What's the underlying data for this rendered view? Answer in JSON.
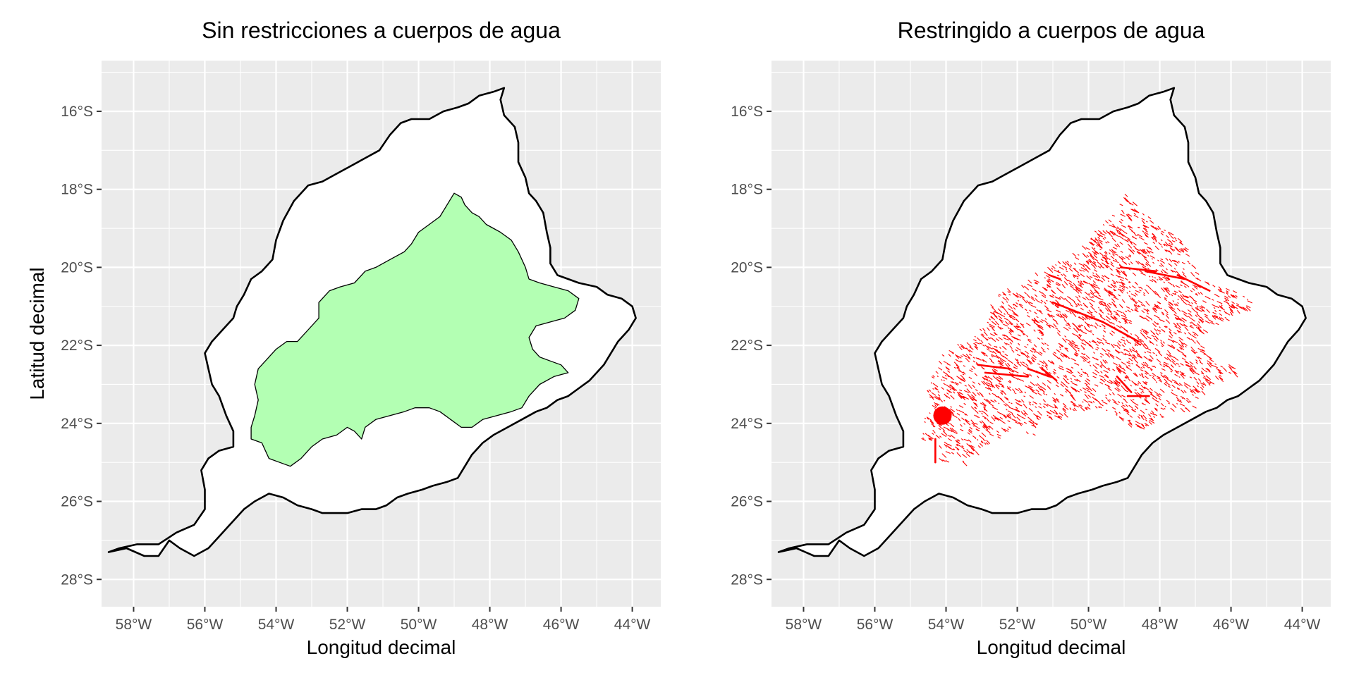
{
  "colors": {
    "panel_background": "#ebebeb",
    "grid_line": "#ffffff",
    "basin_fill": "#ffffff",
    "basin_outline": "#000000",
    "range_fill": "#b3ffb3",
    "water_points": "#ff0000",
    "occurrence_point": "#ff0000",
    "tick_text": "#4d4d4d",
    "title_text": "#000000"
  },
  "axes": {
    "x_label": "Longitud decimal",
    "y_label": "Latitud decimal",
    "x_ticks": [
      {
        "value": -58,
        "label": "58°W"
      },
      {
        "value": -56,
        "label": "56°W"
      },
      {
        "value": -54,
        "label": "54°W"
      },
      {
        "value": -52,
        "label": "52°W"
      },
      {
        "value": -50,
        "label": "50°W"
      },
      {
        "value": -48,
        "label": "48°W"
      },
      {
        "value": -46,
        "label": "46°W"
      },
      {
        "value": -44,
        "label": "44°W"
      }
    ],
    "y_ticks": [
      {
        "value": -16,
        "label": "16°S"
      },
      {
        "value": -18,
        "label": "18°S"
      },
      {
        "value": -20,
        "label": "20°S"
      },
      {
        "value": -22,
        "label": "22°S"
      },
      {
        "value": -24,
        "label": "24°S"
      },
      {
        "value": -26,
        "label": "26°S"
      },
      {
        "value": -28,
        "label": "28°S"
      }
    ]
  },
  "map_data": {
    "basin_outline": [
      [
        -58.7,
        -27.3
      ],
      [
        -58.2,
        -27.2
      ],
      [
        -57.7,
        -27.4
      ],
      [
        -57.3,
        -27.4
      ],
      [
        -57.0,
        -27.0
      ],
      [
        -56.7,
        -27.2
      ],
      [
        -56.3,
        -27.4
      ],
      [
        -55.9,
        -27.2
      ],
      [
        -55.6,
        -26.9
      ],
      [
        -55.3,
        -26.6
      ],
      [
        -54.9,
        -26.2
      ],
      [
        -54.6,
        -26.0
      ],
      [
        -54.2,
        -25.8
      ],
      [
        -53.8,
        -25.9
      ],
      [
        -53.4,
        -26.1
      ],
      [
        -53.0,
        -26.2
      ],
      [
        -52.7,
        -26.3
      ],
      [
        -52.4,
        -26.3
      ],
      [
        -52.0,
        -26.3
      ],
      [
        -51.6,
        -26.2
      ],
      [
        -51.2,
        -26.2
      ],
      [
        -50.9,
        -26.1
      ],
      [
        -50.6,
        -25.9
      ],
      [
        -50.3,
        -25.8
      ],
      [
        -49.9,
        -25.7
      ],
      [
        -49.6,
        -25.6
      ],
      [
        -49.2,
        -25.5
      ],
      [
        -48.9,
        -25.4
      ],
      [
        -48.7,
        -25.1
      ],
      [
        -48.5,
        -24.8
      ],
      [
        -48.2,
        -24.5
      ],
      [
        -47.9,
        -24.3
      ],
      [
        -47.5,
        -24.1
      ],
      [
        -47.1,
        -23.9
      ],
      [
        -46.7,
        -23.7
      ],
      [
        -46.4,
        -23.6
      ],
      [
        -46.1,
        -23.4
      ],
      [
        -45.8,
        -23.3
      ],
      [
        -45.5,
        -23.1
      ],
      [
        -45.2,
        -22.9
      ],
      [
        -45.0,
        -22.7
      ],
      [
        -44.8,
        -22.5
      ],
      [
        -44.6,
        -22.2
      ],
      [
        -44.4,
        -21.9
      ],
      [
        -44.1,
        -21.6
      ],
      [
        -43.9,
        -21.3
      ],
      [
        -44.0,
        -21.0
      ],
      [
        -44.3,
        -20.8
      ],
      [
        -44.7,
        -20.7
      ],
      [
        -45.0,
        -20.5
      ],
      [
        -45.5,
        -20.4
      ],
      [
        -45.8,
        -20.3
      ],
      [
        -46.1,
        -20.2
      ],
      [
        -46.3,
        -19.9
      ],
      [
        -46.3,
        -19.5
      ],
      [
        -46.4,
        -19.1
      ],
      [
        -46.5,
        -18.6
      ],
      [
        -46.7,
        -18.3
      ],
      [
        -46.9,
        -18.1
      ],
      [
        -47.0,
        -17.7
      ],
      [
        -47.2,
        -17.3
      ],
      [
        -47.2,
        -16.8
      ],
      [
        -47.3,
        -16.4
      ],
      [
        -47.6,
        -16.1
      ],
      [
        -47.7,
        -15.7
      ],
      [
        -47.6,
        -15.4
      ],
      [
        -47.9,
        -15.5
      ],
      [
        -48.3,
        -15.6
      ],
      [
        -48.6,
        -15.8
      ],
      [
        -48.9,
        -15.9
      ],
      [
        -49.3,
        -16.0
      ],
      [
        -49.7,
        -16.2
      ],
      [
        -50.2,
        -16.2
      ],
      [
        -50.5,
        -16.3
      ],
      [
        -50.8,
        -16.6
      ],
      [
        -51.1,
        -17.0
      ],
      [
        -51.5,
        -17.2
      ],
      [
        -51.9,
        -17.4
      ],
      [
        -52.3,
        -17.6
      ],
      [
        -52.7,
        -17.8
      ],
      [
        -53.1,
        -17.9
      ],
      [
        -53.5,
        -18.3
      ],
      [
        -53.8,
        -18.8
      ],
      [
        -54.0,
        -19.3
      ],
      [
        -54.1,
        -19.8
      ],
      [
        -54.4,
        -20.1
      ],
      [
        -54.7,
        -20.3
      ],
      [
        -54.9,
        -20.7
      ],
      [
        -55.1,
        -21.0
      ],
      [
        -55.2,
        -21.3
      ],
      [
        -55.5,
        -21.6
      ],
      [
        -55.8,
        -21.9
      ],
      [
        -56.0,
        -22.2
      ],
      [
        -55.9,
        -22.6
      ],
      [
        -55.8,
        -23.0
      ],
      [
        -55.6,
        -23.3
      ],
      [
        -55.4,
        -23.8
      ],
      [
        -55.2,
        -24.2
      ],
      [
        -55.2,
        -24.6
      ],
      [
        -55.6,
        -24.7
      ],
      [
        -55.9,
        -24.9
      ],
      [
        -56.1,
        -25.2
      ],
      [
        -56.0,
        -25.7
      ],
      [
        -56.0,
        -26.2
      ],
      [
        -56.3,
        -26.6
      ],
      [
        -56.8,
        -26.8
      ],
      [
        -57.3,
        -27.1
      ],
      [
        -57.9,
        -27.1
      ],
      [
        -58.4,
        -27.2
      ]
    ],
    "range_polygon": [
      [
        -54.7,
        -24.4
      ],
      [
        -54.4,
        -24.5
      ],
      [
        -54.2,
        -24.9
      ],
      [
        -53.9,
        -25.0
      ],
      [
        -53.6,
        -25.1
      ],
      [
        -53.3,
        -24.9
      ],
      [
        -53.0,
        -24.6
      ],
      [
        -52.7,
        -24.4
      ],
      [
        -52.3,
        -24.3
      ],
      [
        -52.0,
        -24.1
      ],
      [
        -51.8,
        -24.2
      ],
      [
        -51.6,
        -24.4
      ],
      [
        -51.5,
        -24.1
      ],
      [
        -51.2,
        -23.9
      ],
      [
        -50.8,
        -23.8
      ],
      [
        -50.4,
        -23.7
      ],
      [
        -50.1,
        -23.6
      ],
      [
        -49.7,
        -23.6
      ],
      [
        -49.4,
        -23.7
      ],
      [
        -49.1,
        -23.9
      ],
      [
        -48.8,
        -24.1
      ],
      [
        -48.5,
        -24.1
      ],
      [
        -48.2,
        -23.9
      ],
      [
        -47.8,
        -23.8
      ],
      [
        -47.4,
        -23.7
      ],
      [
        -47.1,
        -23.6
      ],
      [
        -46.9,
        -23.3
      ],
      [
        -46.6,
        -23.0
      ],
      [
        -46.2,
        -22.8
      ],
      [
        -45.8,
        -22.7
      ],
      [
        -46.0,
        -22.5
      ],
      [
        -46.3,
        -22.4
      ],
      [
        -46.6,
        -22.3
      ],
      [
        -46.8,
        -22.1
      ],
      [
        -46.9,
        -21.8
      ],
      [
        -46.7,
        -21.5
      ],
      [
        -46.3,
        -21.4
      ],
      [
        -45.9,
        -21.3
      ],
      [
        -45.6,
        -21.1
      ],
      [
        -45.5,
        -20.8
      ],
      [
        -45.8,
        -20.6
      ],
      [
        -46.2,
        -20.5
      ],
      [
        -46.6,
        -20.4
      ],
      [
        -46.9,
        -20.3
      ],
      [
        -47.0,
        -20.0
      ],
      [
        -47.2,
        -19.6
      ],
      [
        -47.4,
        -19.3
      ],
      [
        -47.7,
        -19.1
      ],
      [
        -47.9,
        -19.0
      ],
      [
        -48.1,
        -18.9
      ],
      [
        -48.3,
        -18.7
      ],
      [
        -48.5,
        -18.6
      ],
      [
        -48.7,
        -18.4
      ],
      [
        -48.8,
        -18.2
      ],
      [
        -49.0,
        -18.1
      ],
      [
        -49.2,
        -18.4
      ],
      [
        -49.4,
        -18.7
      ],
      [
        -49.7,
        -18.9
      ],
      [
        -50.0,
        -19.1
      ],
      [
        -50.2,
        -19.4
      ],
      [
        -50.4,
        -19.6
      ],
      [
        -50.8,
        -19.8
      ],
      [
        -51.2,
        -20.0
      ],
      [
        -51.5,
        -20.1
      ],
      [
        -51.8,
        -20.4
      ],
      [
        -52.2,
        -20.5
      ],
      [
        -52.5,
        -20.6
      ],
      [
        -52.8,
        -20.9
      ],
      [
        -52.8,
        -21.3
      ],
      [
        -53.1,
        -21.6
      ],
      [
        -53.4,
        -21.9
      ],
      [
        -53.7,
        -21.9
      ],
      [
        -54.0,
        -22.1
      ],
      [
        -54.2,
        -22.3
      ],
      [
        -54.5,
        -22.6
      ],
      [
        -54.6,
        -23.0
      ],
      [
        -54.5,
        -23.4
      ],
      [
        -54.6,
        -23.8
      ],
      [
        -54.7,
        -24.1
      ]
    ],
    "occurrence_point": {
      "lon": -54.1,
      "lat": -23.8
    },
    "water_strokes": [
      {
        "from": [
          -53.1,
          -22.5
        ],
        "to": [
          -52.2,
          -22.6
        ]
      },
      {
        "from": [
          -52.9,
          -22.7
        ],
        "to": [
          -51.7,
          -22.8
        ]
      },
      {
        "from": [
          -51.7,
          -22.6
        ],
        "to": [
          -51.1,
          -22.8
        ]
      },
      {
        "from": [
          -51.3,
          -22.6
        ],
        "to": [
          -50.9,
          -22.9
        ]
      },
      {
        "from": [
          -51.1,
          -20.2
        ],
        "to": [
          -50.8,
          -20.3
        ]
      },
      {
        "from": [
          -51.0,
          -20.9
        ],
        "to": [
          -49.6,
          -21.4
        ]
      },
      {
        "from": [
          -49.6,
          -21.4
        ],
        "to": [
          -48.6,
          -21.9
        ]
      },
      {
        "from": [
          -49.1,
          -20.0
        ],
        "to": [
          -48.1,
          -20.1
        ]
      },
      {
        "from": [
          -48.4,
          -20.1
        ],
        "to": [
          -47.3,
          -20.3
        ]
      },
      {
        "from": [
          -47.5,
          -20.2
        ],
        "to": [
          -46.6,
          -20.6
        ]
      },
      {
        "from": [
          -49.2,
          -22.8
        ],
        "to": [
          -48.8,
          -23.2
        ]
      },
      {
        "from": [
          -48.9,
          -23.3
        ],
        "to": [
          -48.3,
          -23.3
        ]
      },
      {
        "from": [
          -54.3,
          -24.4
        ],
        "to": [
          -54.3,
          -25.0
        ]
      }
    ]
  },
  "panels": [
    {
      "id": "left",
      "title": "Sin restricciones a cuerpos de agua",
      "show_y_label": true,
      "layers": [
        "basin",
        "range"
      ]
    },
    {
      "id": "right",
      "title": "Restringido a cuerpos de agua",
      "show_y_label": false,
      "layers": [
        "basin",
        "water",
        "point"
      ]
    }
  ]
}
